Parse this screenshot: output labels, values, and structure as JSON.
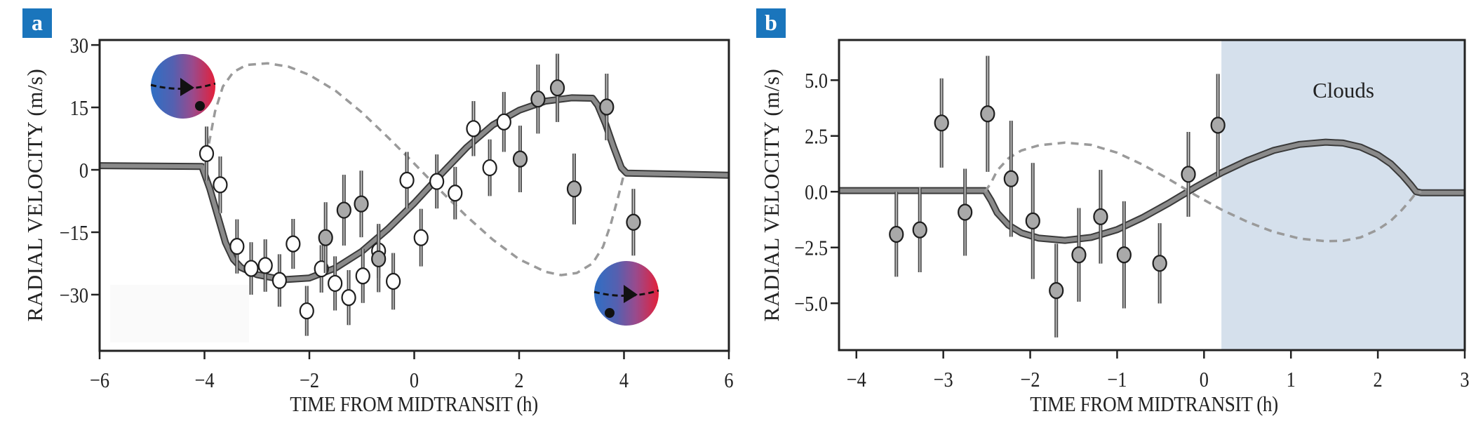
{
  "colors": {
    "label_bg": "#1a75bc",
    "clouds_bg": "#d5e0ec",
    "marker_gray": "#a9a9a9",
    "model_line": "#8a8a8a",
    "dashed_line": "#9a9a9a",
    "star_blue": "#2f6fc4",
    "star_red": "#e3203a"
  },
  "chart_data": [
    {
      "panel": "a",
      "type": "scatter",
      "xlabel": "TIME FROM MIDTRANSIT (h)",
      "ylabel": "RADIAL VELOCITY (m/s)",
      "xlim": [
        -6,
        6
      ],
      "ylim": [
        -43.5,
        31.2
      ],
      "xticks": [
        -6,
        -4,
        -2,
        0,
        2,
        4,
        6
      ],
      "xtick_labels": [
        "−6",
        "−4",
        "−2",
        "0",
        "2",
        "4",
        "6"
      ],
      "yticks": [
        30,
        15,
        0,
        -15,
        -30
      ],
      "ytick_labels": [
        "30",
        "15",
        "0",
        "−15",
        "−30"
      ],
      "grid": false,
      "series": [
        {
          "name": "open points",
          "marker": "white",
          "x": [
            -3.96,
            -3.7,
            -3.38,
            -3.11,
            -2.84,
            -2.57,
            -2.31,
            -2.05,
            -1.77,
            -1.51,
            -1.25,
            -0.98,
            -0.68,
            -0.4,
            -0.14,
            0.13,
            0.43,
            0.78,
            1.13,
            1.44,
            1.71
          ],
          "y": [
            3.9,
            -3.6,
            -18.4,
            -23.7,
            -23.0,
            -26.6,
            -17.8,
            -33.9,
            -23.8,
            -27.3,
            -30.7,
            -25.5,
            -19.5,
            -26.8,
            -2.5,
            -16.3,
            -2.8,
            -5.6,
            9.9,
            0.5,
            11.5
          ],
          "err": [
            6.5,
            6.8,
            6.5,
            6.3,
            6.3,
            6.3,
            6.0,
            6.0,
            5.7,
            6.5,
            6.6,
            6.5,
            6.5,
            6.8,
            6.8,
            6.9,
            6.5,
            6.3,
            6.6,
            6.8,
            7.2
          ]
        },
        {
          "name": "gray points",
          "marker": "gray",
          "x": [
            -1.69,
            -1.34,
            -1.01,
            -0.68,
            2.02,
            2.36,
            2.73,
            3.05,
            3.67,
            4.18
          ],
          "y": [
            -16.3,
            -9.7,
            -8.2,
            -21.4,
            2.6,
            17.0,
            19.7,
            -4.6,
            15.1,
            -12.6
          ],
          "err": [
            8.5,
            8.5,
            8.0,
            8.0,
            8.0,
            8.3,
            8.2,
            8.5,
            8.0,
            8.0
          ]
        },
        {
          "name": "model",
          "style": "solid",
          "x": [
            -6,
            -4.05,
            -3.9,
            -3.75,
            -3.6,
            -3.45,
            -3.3,
            -3.0,
            -2.5,
            -2.0,
            -1.5,
            -1.0,
            -0.5,
            0,
            0.5,
            1.0,
            1.5,
            2.0,
            2.5,
            3.0,
            3.4,
            3.5,
            3.65,
            3.8,
            3.95,
            4.05,
            6
          ],
          "y": [
            1.0,
            0.8,
            -4.5,
            -11,
            -17.5,
            -21.5,
            -23.5,
            -25.2,
            -26.4,
            -26.0,
            -23.6,
            -19.6,
            -14.2,
            -8.0,
            -1.2,
            5.4,
            10.8,
            14.3,
            16.5,
            17.3,
            17.2,
            15.5,
            11,
            5.5,
            0.5,
            -0.8,
            -1.3
          ]
        },
        {
          "name": "mirror model",
          "style": "dashed",
          "x": [
            -4.0,
            -3.92,
            -3.8,
            -3.65,
            -3.45,
            -3.2,
            -2.8,
            -2.4,
            -2.0,
            -1.5,
            -1.0,
            -0.5,
            0,
            0.5,
            1.0,
            1.5,
            2.0,
            2.5,
            2.8,
            3.1,
            3.4,
            3.6,
            3.75,
            3.9,
            4.0
          ],
          "y": [
            0,
            6,
            14,
            20,
            23.5,
            25.2,
            25.6,
            24.8,
            22.8,
            19.0,
            13.8,
            7.8,
            1.5,
            -5.0,
            -11.2,
            -16.8,
            -21.5,
            -24.5,
            -25.3,
            -24.8,
            -22.5,
            -18.5,
            -13,
            -6,
            -1
          ]
        }
      ]
    },
    {
      "panel": "b",
      "type": "scatter",
      "xlabel": "TIME FROM MIDTRANSIT (h)",
      "ylabel": "RADIAL VELOCITY (m/s)",
      "xlim": [
        -4.2,
        3.0
      ],
      "ylim": [
        -7.1,
        6.8
      ],
      "xticks": [
        -4,
        -3,
        -2,
        -1,
        0,
        1,
        2,
        3
      ],
      "xtick_labels": [
        "−4",
        "−3",
        "−2",
        "−1",
        "0",
        "1",
        "2",
        "3"
      ],
      "yticks": [
        5,
        2.5,
        0,
        -2.5,
        -5
      ],
      "ytick_labels": [
        "5.0",
        "2.5",
        "0.0",
        "−2.5",
        "−5.0"
      ],
      "grid": false,
      "shaded_region": {
        "label": "Clouds",
        "x": [
          0.2,
          3.0
        ]
      },
      "series": [
        {
          "name": "gray points",
          "marker": "gray",
          "x": [
            -3.54,
            -3.27,
            -3.02,
            -2.75,
            -2.49,
            -2.22,
            -1.97,
            -1.7,
            -1.44,
            -1.19,
            -0.92,
            -0.51,
            -0.18,
            0.16
          ],
          "y": [
            -1.91,
            -1.71,
            3.08,
            -0.92,
            3.49,
            0.58,
            -1.31,
            -4.43,
            -2.83,
            -1.12,
            -2.83,
            -3.21,
            0.78,
            2.98
          ],
          "err": [
            1.9,
            1.9,
            2.0,
            1.95,
            2.6,
            2.6,
            2.6,
            2.1,
            2.1,
            2.1,
            2.4,
            1.8,
            1.9,
            2.3
          ]
        },
        {
          "name": "model",
          "style": "solid",
          "x": [
            -4.2,
            -2.52,
            -2.45,
            -2.38,
            -2.25,
            -2.1,
            -1.9,
            -1.6,
            -1.3,
            -1.0,
            -0.7,
            -0.4,
            -0.1,
            0.2,
            0.5,
            0.8,
            1.1,
            1.4,
            1.6,
            1.8,
            2.0,
            2.15,
            2.28,
            2.38,
            2.44,
            2.5,
            3.0
          ],
          "y": [
            0.05,
            0.05,
            -0.4,
            -0.95,
            -1.5,
            -1.85,
            -2.08,
            -2.18,
            -2.05,
            -1.7,
            -1.15,
            -0.5,
            0.2,
            0.85,
            1.4,
            1.85,
            2.12,
            2.22,
            2.18,
            2.0,
            1.65,
            1.25,
            0.75,
            0.3,
            0.0,
            -0.05,
            -0.05
          ]
        },
        {
          "name": "mirror model",
          "style": "dashed",
          "x": [
            -2.52,
            -2.45,
            -2.38,
            -2.25,
            -2.1,
            -1.9,
            -1.6,
            -1.3,
            -1.0,
            -0.7,
            -0.4,
            -0.1,
            0.2,
            0.5,
            0.8,
            1.1,
            1.4,
            1.6,
            1.8,
            2.0,
            2.15,
            2.28,
            2.38,
            2.44,
            2.5
          ],
          "y": [
            0.0,
            0.4,
            0.95,
            1.5,
            1.85,
            2.08,
            2.2,
            2.1,
            1.75,
            1.2,
            0.55,
            -0.15,
            -0.8,
            -1.35,
            -1.8,
            -2.1,
            -2.22,
            -2.2,
            -2.05,
            -1.7,
            -1.3,
            -0.8,
            -0.35,
            -0.05,
            0.0
          ]
        }
      ]
    }
  ]
}
